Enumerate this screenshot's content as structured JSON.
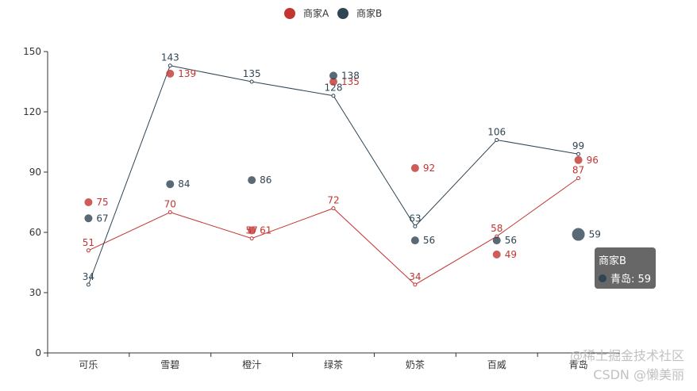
{
  "chart_data": {
    "type": "line",
    "categories": [
      "可乐",
      "雪碧",
      "橙汁",
      "绿茶",
      "奶茶",
      "百威",
      "青岛"
    ],
    "ylim": [
      0,
      150
    ],
    "y_ticks": [
      0,
      30,
      60,
      90,
      120,
      150
    ],
    "legend": [
      {
        "name": "商家A",
        "color": "#c23531"
      },
      {
        "name": "商家B",
        "color": "#2f4554"
      }
    ],
    "line_series": [
      {
        "legend": "商家A",
        "color": "#c23531",
        "values": [
          51,
          70,
          57,
          72,
          34,
          58,
          87
        ]
      },
      {
        "legend": "商家B",
        "color": "#2f4554",
        "values": [
          34,
          143,
          135,
          128,
          63,
          106,
          99
        ]
      }
    ],
    "scatter_series": [
      {
        "legend": "商家A",
        "color": "#c23531",
        "values": [
          75,
          139,
          61,
          135,
          92,
          49,
          96
        ]
      },
      {
        "legend": "商家B",
        "color": "#2f4554",
        "values": [
          67,
          84,
          86,
          138,
          56,
          56,
          59
        ]
      }
    ],
    "tooltip": {
      "title": "商家B",
      "text": "青岛: 59",
      "category_index": 6
    },
    "watermark": "@稀土掘金技术社区\nCSDN @懒美丽"
  }
}
